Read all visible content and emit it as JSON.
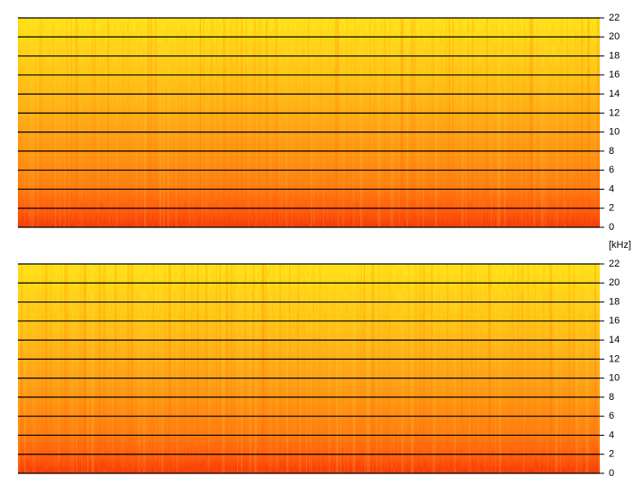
{
  "chart_data": [
    {
      "type": "spectrogram",
      "ylim": [
        0,
        22
      ],
      "yticks": [
        0,
        2,
        4,
        6,
        8,
        10,
        12,
        14,
        16,
        18,
        20,
        22
      ],
      "grid": true,
      "y_label": "[kHz]"
    },
    {
      "type": "spectrogram",
      "ylim": [
        0,
        22
      ],
      "yticks": [
        0,
        2,
        4,
        6,
        8,
        10,
        12,
        14,
        16,
        18,
        20,
        22
      ],
      "grid": true
    }
  ]
}
